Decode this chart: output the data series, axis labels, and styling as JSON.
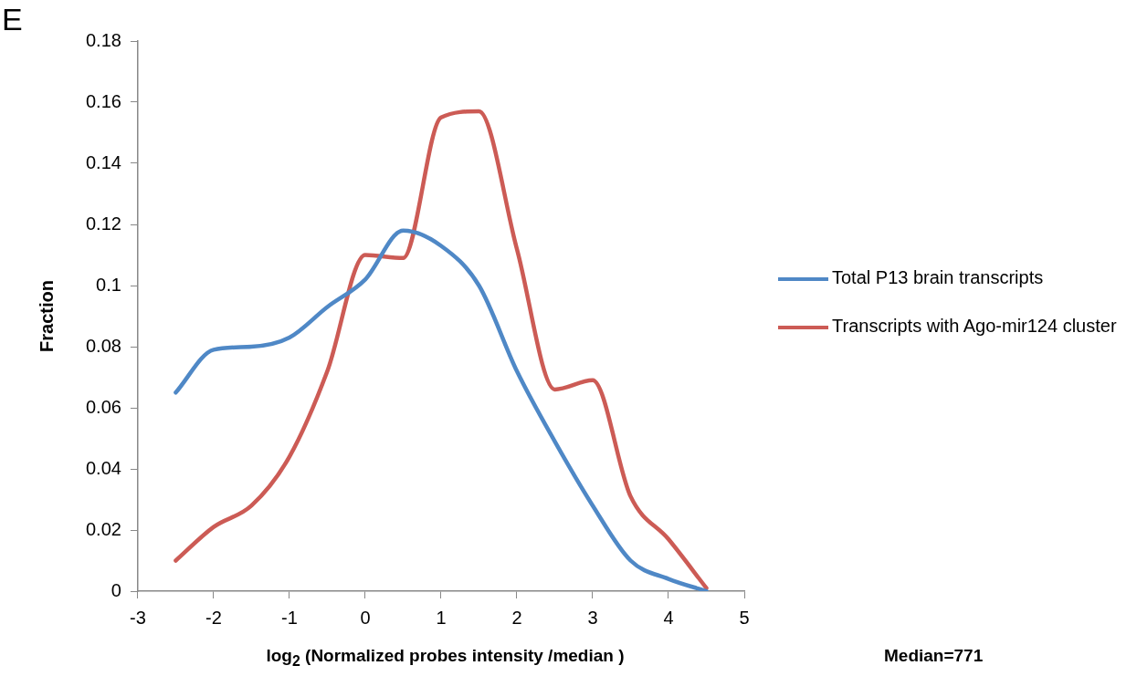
{
  "chart_data": {
    "type": "line",
    "title": "E",
    "xlabel": "log$_{2}$ (Normalized probes intensity /median )",
    "ylabel": "Fraction",
    "annotations": [
      "Median=771"
    ],
    "x": [
      -2.5,
      -2,
      -1.5,
      -1,
      -0.5,
      0,
      0.5,
      1,
      1.5,
      2,
      2.5,
      3,
      3.5,
      4,
      4.5
    ],
    "series": [
      {
        "name": "Total P13 brain transcripts",
        "color": "#4f88c6",
        "values": [
          0.065,
          0.079,
          0.08,
          0.083,
          0.093,
          0.102,
          0.118,
          0.113,
          0.1,
          0.072,
          0.049,
          0.028,
          0.01,
          0.004,
          0
        ]
      },
      {
        "name": "Transcripts with Ago-mir124 cluster",
        "color": "#cc5b55",
        "values": [
          0.01,
          0.021,
          0.028,
          0.044,
          0.072,
          0.11,
          0.109,
          0.155,
          0.157,
          0.112,
          0.066,
          0.069,
          0.031,
          0.017,
          0.001
        ]
      }
    ],
    "xlim": [
      -3,
      5
    ],
    "xticks": [
      -3,
      -2,
      -1,
      0,
      1,
      2,
      3,
      4,
      5
    ],
    "ylim": [
      0,
      0.18
    ],
    "yticks": [
      0,
      0.02,
      0.04,
      0.06,
      0.08,
      0.1,
      0.12,
      0.14,
      0.16,
      0.18
    ],
    "grid": false,
    "legend": "right",
    "marker": "none",
    "line_style": "solid"
  }
}
